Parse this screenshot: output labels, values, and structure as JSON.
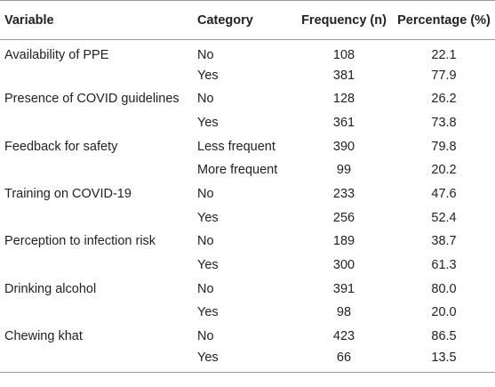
{
  "headers": {
    "variable": "Variable",
    "category": "Category",
    "frequency": "Frequency (n)",
    "percentage": "Percentage (%)"
  },
  "rows": [
    {
      "variable": "Availability of PPE",
      "category": "No",
      "frequency": "108",
      "percentage": "22.1"
    },
    {
      "variable": "",
      "category": "Yes",
      "frequency": "381",
      "percentage": "77.9"
    },
    {
      "variable": "Presence of COVID guidelines",
      "category": "No",
      "frequency": "128",
      "percentage": "26.2"
    },
    {
      "variable": "",
      "category": "Yes",
      "frequency": "361",
      "percentage": "73.8"
    },
    {
      "variable": "Feedback for safety",
      "category": "Less frequent",
      "frequency": "390",
      "percentage": "79.8"
    },
    {
      "variable": "",
      "category": "More frequent",
      "frequency": "99",
      "percentage": "20.2"
    },
    {
      "variable": "Training on COVID-19",
      "category": "No",
      "frequency": "233",
      "percentage": "47.6"
    },
    {
      "variable": "",
      "category": "Yes",
      "frequency": "256",
      "percentage": "52.4"
    },
    {
      "variable": "Perception to infection risk",
      "category": "No",
      "frequency": "189",
      "percentage": "38.7"
    },
    {
      "variable": "",
      "category": "Yes",
      "frequency": "300",
      "percentage": "61.3"
    },
    {
      "variable": "Drinking alcohol",
      "category": "No",
      "frequency": "391",
      "percentage": "80.0"
    },
    {
      "variable": "",
      "category": "Yes",
      "frequency": "98",
      "percentage": "20.0"
    },
    {
      "variable": "Chewing khat",
      "category": "No",
      "frequency": "423",
      "percentage": "86.5"
    },
    {
      "variable": "",
      "category": "Yes",
      "frequency": "66",
      "percentage": "13.5"
    }
  ]
}
